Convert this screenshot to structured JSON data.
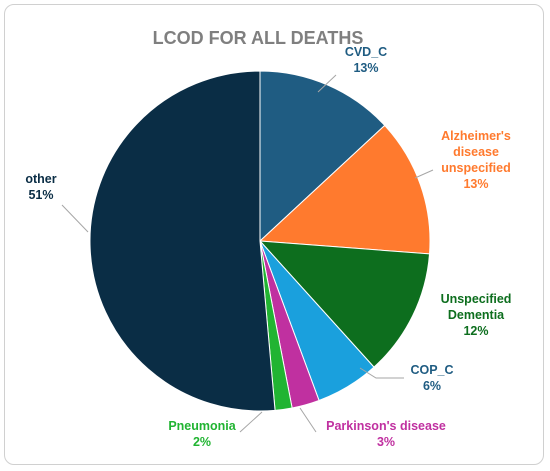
{
  "chart_data": {
    "type": "pie",
    "title": "LCOD FOR ALL DEATHS",
    "slices": [
      {
        "label": "CVD_C",
        "percent_label": "13%",
        "value": 13,
        "color": "#1f5c82"
      },
      {
        "label": "Alzheimer's disease unspecified",
        "label_lines": [
          "Alzheimer's",
          "disease",
          "unspecified"
        ],
        "percent_label": "13%",
        "value": 13,
        "color": "#ff7a2e"
      },
      {
        "label": "Unspecified Dementia",
        "label_lines": [
          "Unspecified",
          "Dementia"
        ],
        "percent_label": "12%",
        "value": 12,
        "color": "#0d6e1e"
      },
      {
        "label": "COP_C",
        "percent_label": "6%",
        "value": 6,
        "color": "#1aa0dd"
      },
      {
        "label": "Parkinson's disease",
        "percent_label": "3%",
        "value": 2.6,
        "color": "#c030a0"
      },
      {
        "label": "Pneumonia",
        "percent_label": "2%",
        "value": 1.6,
        "color": "#21b432"
      },
      {
        "label": "other",
        "percent_label": "51%",
        "value": 51,
        "color": "#0a2d45"
      }
    ],
    "label_colors": {
      "CVD_C": "#1f5c82",
      "Alzheimer's disease unspecified": "#ff7a2e",
      "Unspecified Dementia": "#0d6e1e",
      "COP_C": "#1f5c82",
      "Parkinson's disease": "#c030a0",
      "Pneumonia": "#21b432",
      "other": "#0a2d45"
    }
  }
}
